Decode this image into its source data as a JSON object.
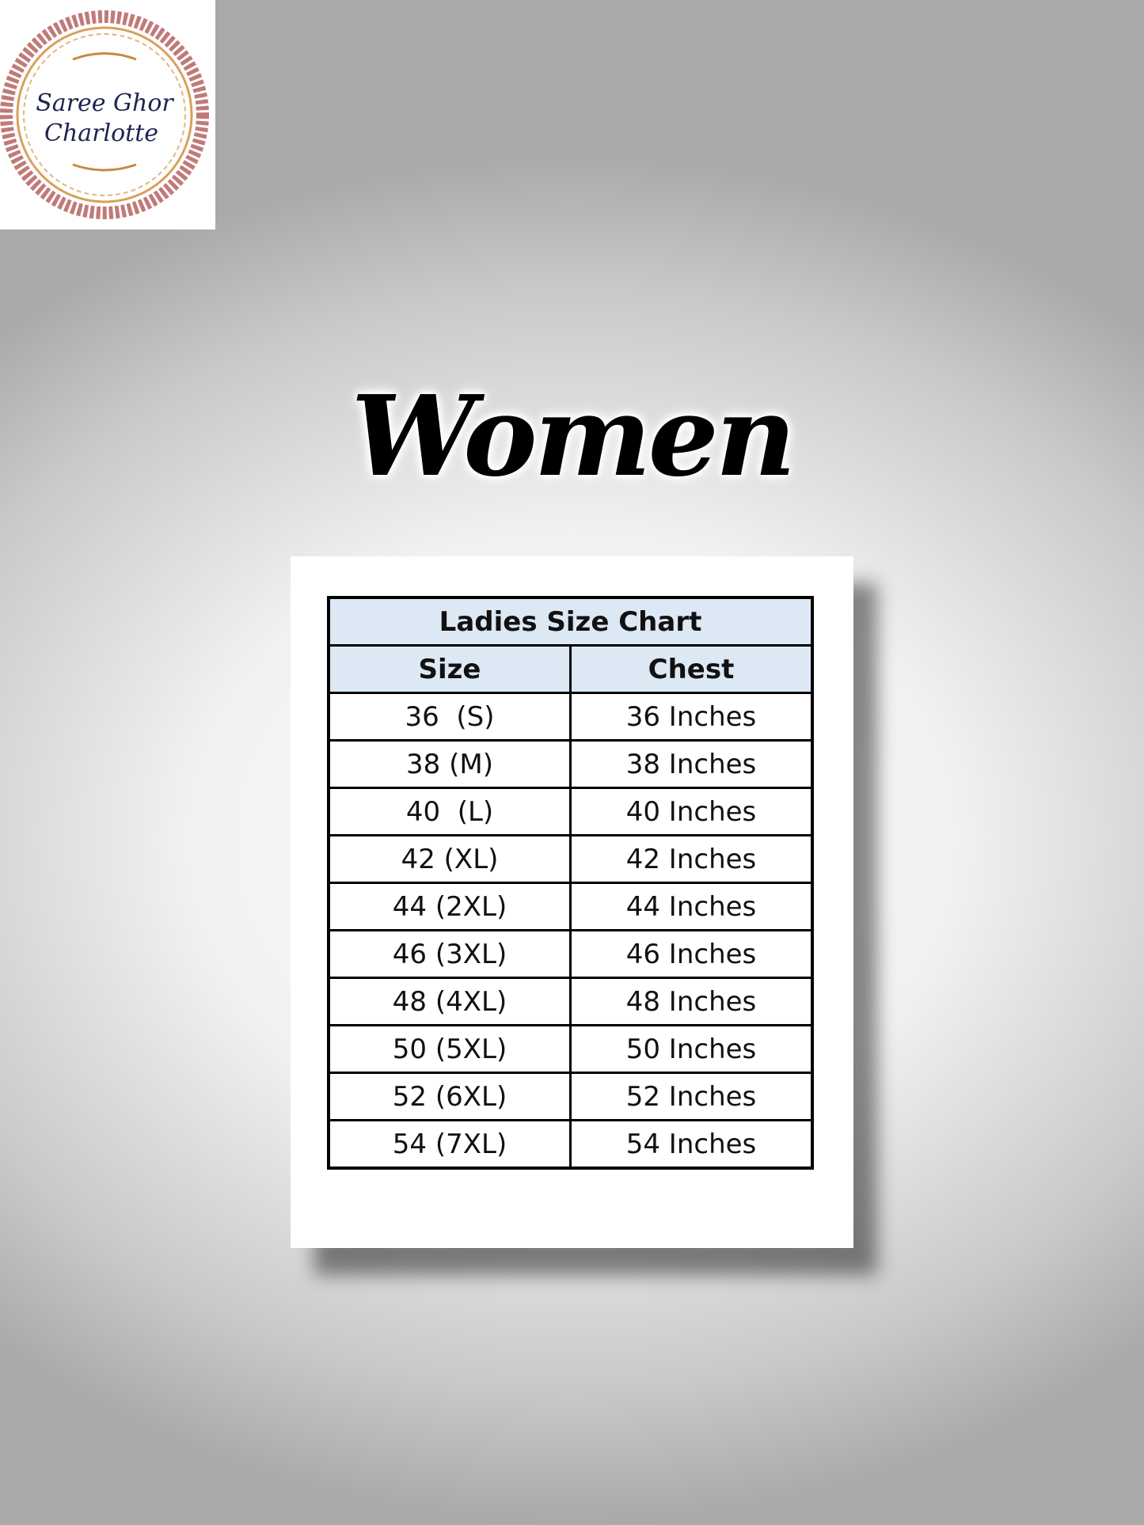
{
  "logo": {
    "text_line1": "Saree Ghor",
    "text_line2": "Charlotte"
  },
  "title": "Women",
  "size_chart": {
    "caption": "Ladies Size Chart",
    "columns": [
      "Size",
      "Chest"
    ],
    "rows": [
      [
        "36  (S)",
        "36 Inches"
      ],
      [
        "38 (M)",
        "38 Inches"
      ],
      [
        "40  (L)",
        "40 Inches"
      ],
      [
        "42 (XL)",
        "42 Inches"
      ],
      [
        "44 (2XL)",
        "44 Inches"
      ],
      [
        "46 (3XL)",
        "46 Inches"
      ],
      [
        "48 (4XL)",
        "48 Inches"
      ],
      [
        "50 (5XL)",
        "50 Inches"
      ],
      [
        "52 (6XL)",
        "52 Inches"
      ],
      [
        "54 (7XL)",
        "54 Inches"
      ]
    ],
    "header_bg": "#dde8f5"
  }
}
